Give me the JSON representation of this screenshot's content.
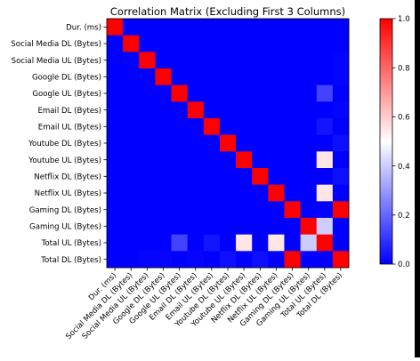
{
  "chart_data": {
    "type": "heatmap",
    "title": "Correlation Matrix (Excluding First 3 Columns)",
    "row_labels": [
      "Dur. (ms)",
      "Social Media DL (Bytes)",
      "Social Media UL (Bytes)",
      "Google DL (Bytes)",
      "Google UL (Bytes)",
      "Email DL (Bytes)",
      "Email UL (Bytes)",
      "Youtube DL (Bytes)",
      "Youtube UL (Bytes)",
      "Netflix DL (Bytes)",
      "Netflix UL (Bytes)",
      "Gaming DL (Bytes)",
      "Gaming UL (Bytes)",
      "Total UL (Bytes)",
      "Total DL (Bytes)"
    ],
    "column_labels": [
      "Dur. (ms)",
      "Social Media DL (Bytes)",
      "Social Media UL (Bytes)",
      "Google DL (Bytes)",
      "Google UL (Bytes)",
      "Email DL (Bytes)",
      "Email UL (Bytes)",
      "Youtube DL (Bytes)",
      "Youtube UL (Bytes)",
      "Netflix DL (Bytes)",
      "Netflix UL (Bytes)",
      "Gaming DL (Bytes)",
      "Gaming UL (Bytes)",
      "Total UL (Bytes)",
      "Total DL (Bytes)"
    ],
    "values": [
      [
        1.0,
        0.0,
        0.0,
        0.0,
        0.0,
        0.0,
        0.0,
        0.0,
        0.0,
        0.0,
        0.0,
        0.0,
        0.0,
        0.0,
        0.0
      ],
      [
        0.0,
        1.0,
        0.0,
        0.0,
        0.0,
        0.0,
        0.0,
        0.0,
        0.0,
        0.0,
        0.0,
        0.0,
        0.0,
        0.0,
        0.0
      ],
      [
        0.0,
        0.0,
        1.0,
        0.0,
        0.0,
        0.0,
        0.0,
        0.0,
        0.0,
        0.0,
        0.0,
        0.0,
        0.0,
        0.0,
        0.01
      ],
      [
        0.0,
        0.0,
        0.0,
        1.0,
        0.0,
        0.0,
        0.0,
        0.0,
        0.0,
        0.0,
        0.0,
        0.0,
        0.0,
        0.0,
        0.01
      ],
      [
        0.0,
        0.0,
        0.0,
        0.0,
        1.0,
        0.0,
        0.0,
        0.0,
        0.0,
        0.0,
        0.0,
        0.0,
        0.0,
        0.13,
        0.0
      ],
      [
        0.0,
        0.0,
        0.0,
        0.0,
        0.0,
        1.0,
        0.0,
        0.0,
        0.0,
        0.0,
        0.0,
        0.0,
        0.0,
        0.0,
        0.01
      ],
      [
        0.0,
        0.0,
        0.0,
        0.0,
        0.0,
        0.0,
        1.0,
        0.0,
        0.0,
        0.0,
        0.0,
        0.0,
        0.0,
        0.04,
        0.0
      ],
      [
        0.0,
        0.0,
        0.0,
        0.0,
        0.0,
        0.0,
        0.0,
        1.0,
        0.0,
        0.0,
        0.0,
        0.0,
        0.0,
        0.0,
        0.03
      ],
      [
        0.0,
        0.0,
        0.0,
        0.0,
        0.0,
        0.0,
        0.0,
        0.0,
        1.0,
        0.0,
        0.0,
        0.0,
        0.0,
        0.55,
        0.0
      ],
      [
        0.0,
        0.0,
        0.0,
        0.0,
        0.0,
        0.0,
        0.0,
        0.0,
        0.0,
        1.0,
        0.0,
        0.0,
        0.0,
        0.0,
        0.03
      ],
      [
        0.0,
        0.0,
        0.0,
        0.0,
        0.0,
        0.0,
        0.0,
        0.0,
        0.0,
        0.0,
        1.0,
        0.0,
        0.0,
        0.55,
        0.0
      ],
      [
        0.0,
        0.0,
        0.0,
        0.0,
        0.0,
        0.0,
        0.0,
        0.0,
        0.0,
        0.0,
        0.0,
        1.0,
        0.0,
        0.0,
        1.0
      ],
      [
        0.0,
        0.0,
        0.0,
        0.0,
        0.0,
        0.0,
        0.0,
        0.0,
        0.0,
        0.0,
        0.0,
        0.0,
        1.0,
        0.4,
        0.0
      ],
      [
        0.0,
        0.0,
        0.0,
        0.0,
        0.13,
        0.0,
        0.04,
        0.0,
        0.55,
        0.0,
        0.55,
        0.0,
        0.4,
        1.0,
        0.0
      ],
      [
        0.0,
        0.0,
        0.01,
        0.01,
        0.0,
        0.01,
        0.0,
        0.03,
        0.0,
        0.03,
        0.0,
        1.0,
        0.0,
        0.0,
        1.0
      ]
    ],
    "colorbar": {
      "min": 0.0,
      "max": 1.0,
      "ticks": [
        0.0,
        0.2,
        0.4,
        0.6,
        0.8,
        1.0
      ],
      "tick_labels": [
        "0.0",
        "0.2",
        "0.4",
        "0.6",
        "0.8",
        "1.0"
      ],
      "colormap": "bwr",
      "colors": {
        "low": "#0000ff",
        "mid": "#ffffff",
        "high": "#ff0000"
      }
    }
  }
}
